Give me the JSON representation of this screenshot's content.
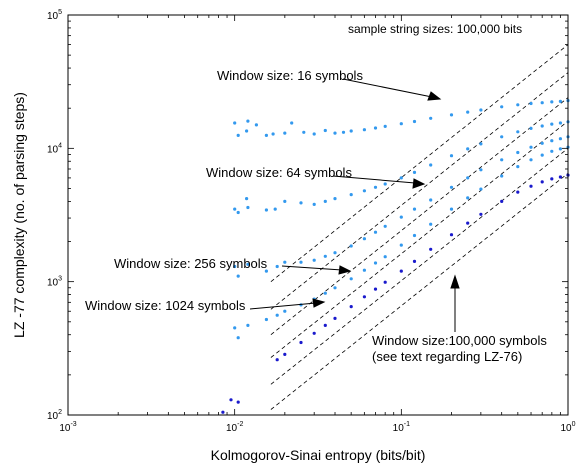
{
  "chart_data": {
    "type": "scatter",
    "xlabel": "Kolmogorov-Sinai entropy (bits/bit)",
    "ylabel": "LZ -77 complexity (no. of parsing steps)",
    "x_scale": "log",
    "y_scale": "log",
    "xlim": [
      0.001,
      1
    ],
    "ylim": [
      100,
      100000
    ],
    "x_ticks": [
      {
        "base": "10",
        "exp": "-3"
      },
      {
        "base": "10",
        "exp": "-2"
      },
      {
        "base": "10",
        "exp": "-1"
      },
      {
        "base": "10",
        "exp": "0"
      }
    ],
    "y_ticks": [
      {
        "base": "10",
        "exp": "2"
      },
      {
        "base": "10",
        "exp": "3"
      },
      {
        "base": "10",
        "exp": "4"
      },
      {
        "base": "10",
        "exp": "5"
      }
    ],
    "note": "sample string sizes: 100,000 bits",
    "grid": false,
    "series": [
      {
        "annotation": "Window size: 16 symbols",
        "color": "#3399ee",
        "points": [
          [
            0.01,
            15500
          ],
          [
            0.0105,
            12500
          ],
          [
            0.0118,
            13500
          ],
          [
            0.012,
            16000
          ],
          [
            0.0135,
            15000
          ],
          [
            0.0155,
            12500
          ],
          [
            0.017,
            12800
          ],
          [
            0.02,
            13000
          ],
          [
            0.022,
            15500
          ],
          [
            0.026,
            13200
          ],
          [
            0.03,
            12800
          ],
          [
            0.035,
            13600
          ],
          [
            0.04,
            13000
          ],
          [
            0.045,
            13200
          ],
          [
            0.05,
            13500
          ],
          [
            0.06,
            13800
          ],
          [
            0.07,
            14200
          ],
          [
            0.08,
            14600
          ],
          [
            0.1,
            15300
          ],
          [
            0.12,
            15900
          ],
          [
            0.15,
            16800
          ],
          [
            0.2,
            17800
          ],
          [
            0.25,
            18700
          ],
          [
            0.3,
            19400
          ],
          [
            0.4,
            20500
          ],
          [
            0.5,
            21200
          ],
          [
            0.6,
            21700
          ],
          [
            0.7,
            22000
          ],
          [
            0.8,
            22300
          ],
          [
            0.9,
            22500
          ],
          [
            1.0,
            22800
          ]
        ]
      },
      {
        "annotation": "Window size: 64 symbols",
        "color": "#3399ee",
        "points": [
          [
            0.01,
            3500
          ],
          [
            0.0105,
            3300
          ],
          [
            0.0118,
            4200
          ],
          [
            0.012,
            3600
          ],
          [
            0.0155,
            3450
          ],
          [
            0.0175,
            3500
          ],
          [
            0.02,
            4000
          ],
          [
            0.025,
            3900
          ],
          [
            0.03,
            3800
          ],
          [
            0.035,
            4000
          ],
          [
            0.04,
            4200
          ],
          [
            0.05,
            4500
          ],
          [
            0.06,
            4800
          ],
          [
            0.07,
            5100
          ],
          [
            0.08,
            5400
          ],
          [
            0.1,
            6000
          ],
          [
            0.12,
            6600
          ],
          [
            0.15,
            7500
          ],
          [
            0.2,
            8800
          ],
          [
            0.25,
            9900
          ],
          [
            0.3,
            10800
          ],
          [
            0.4,
            12200
          ],
          [
            0.5,
            13300
          ],
          [
            0.6,
            14100
          ],
          [
            0.7,
            14700
          ],
          [
            0.8,
            15200
          ],
          [
            0.9,
            15500
          ],
          [
            1.0,
            15800
          ]
        ]
      },
      {
        "annotation": "Window size:  256 symbols",
        "color": "#3399ee",
        "points": [
          [
            0.01,
            1300
          ],
          [
            0.0105,
            1100
          ],
          [
            0.012,
            1350
          ],
          [
            0.0155,
            1200
          ],
          [
            0.018,
            1300
          ],
          [
            0.02,
            1400
          ],
          [
            0.025,
            1400
          ],
          [
            0.03,
            1450
          ],
          [
            0.035,
            1550
          ],
          [
            0.04,
            1650
          ],
          [
            0.05,
            1850
          ],
          [
            0.06,
            2100
          ],
          [
            0.07,
            2350
          ],
          [
            0.08,
            2600
          ],
          [
            0.1,
            3050
          ],
          [
            0.12,
            3500
          ],
          [
            0.15,
            4100
          ],
          [
            0.2,
            5100
          ],
          [
            0.25,
            6000
          ],
          [
            0.3,
            6900
          ],
          [
            0.4,
            8200
          ],
          [
            0.5,
            9300
          ],
          [
            0.6,
            10200
          ],
          [
            0.7,
            10900
          ],
          [
            0.8,
            11400
          ],
          [
            0.9,
            11800
          ],
          [
            1.0,
            12200
          ]
        ]
      },
      {
        "annotation": "Window size: 1024 symbols",
        "color": "#3399ee",
        "points": [
          [
            0.01,
            450
          ],
          [
            0.0105,
            380
          ],
          [
            0.012,
            470
          ],
          [
            0.0155,
            520
          ],
          [
            0.018,
            560
          ],
          [
            0.02,
            600
          ],
          [
            0.025,
            670
          ],
          [
            0.03,
            740
          ],
          [
            0.035,
            820
          ],
          [
            0.04,
            900
          ],
          [
            0.05,
            1050
          ],
          [
            0.06,
            1220
          ],
          [
            0.07,
            1380
          ],
          [
            0.08,
            1540
          ],
          [
            0.1,
            1880
          ],
          [
            0.12,
            2220
          ],
          [
            0.15,
            2700
          ],
          [
            0.2,
            3500
          ],
          [
            0.25,
            4250
          ],
          [
            0.3,
            4950
          ],
          [
            0.4,
            6200
          ],
          [
            0.5,
            7300
          ],
          [
            0.6,
            8200
          ],
          [
            0.7,
            8900
          ],
          [
            0.8,
            9500
          ],
          [
            0.9,
            9900
          ],
          [
            1.0,
            10200
          ]
        ]
      },
      {
        "annotation": "Window size:100,000 symbols",
        "annotation_line2": "(see text regarding LZ-76)",
        "color": "#1a1acc",
        "points": [
          [
            0.0085,
            105
          ],
          [
            0.0095,
            130
          ],
          [
            0.0105,
            125
          ],
          [
            0.018,
            260
          ],
          [
            0.02,
            285
          ],
          [
            0.025,
            350
          ],
          [
            0.03,
            410
          ],
          [
            0.035,
            470
          ],
          [
            0.04,
            530
          ],
          [
            0.05,
            650
          ],
          [
            0.06,
            770
          ],
          [
            0.07,
            880
          ],
          [
            0.08,
            990
          ],
          [
            0.1,
            1200
          ],
          [
            0.12,
            1420
          ],
          [
            0.15,
            1750
          ],
          [
            0.2,
            2250
          ],
          [
            0.25,
            2750
          ],
          [
            0.3,
            3200
          ],
          [
            0.4,
            4000
          ],
          [
            0.5,
            4700
          ],
          [
            0.6,
            5200
          ],
          [
            0.7,
            5600
          ],
          [
            0.8,
            5900
          ],
          [
            0.9,
            6100
          ],
          [
            1.0,
            6300
          ]
        ]
      }
    ],
    "dashed_lines": [
      {
        "x": [
          0.0165,
          1.0
        ],
        "y": [
          1000,
          60000
        ]
      },
      {
        "x": [
          0.0165,
          1.0
        ],
        "y": [
          620,
          37000
        ]
      },
      {
        "x": [
          0.0165,
          1.0
        ],
        "y": [
          400,
          24000
        ]
      },
      {
        "x": [
          0.0165,
          1.0
        ],
        "y": [
          270,
          16000
        ]
      },
      {
        "x": [
          0.0165,
          1.0
        ],
        "y": [
          170,
          10000
        ]
      },
      {
        "x": [
          0.0165,
          1.0
        ],
        "y": [
          110,
          6500
        ]
      }
    ]
  }
}
